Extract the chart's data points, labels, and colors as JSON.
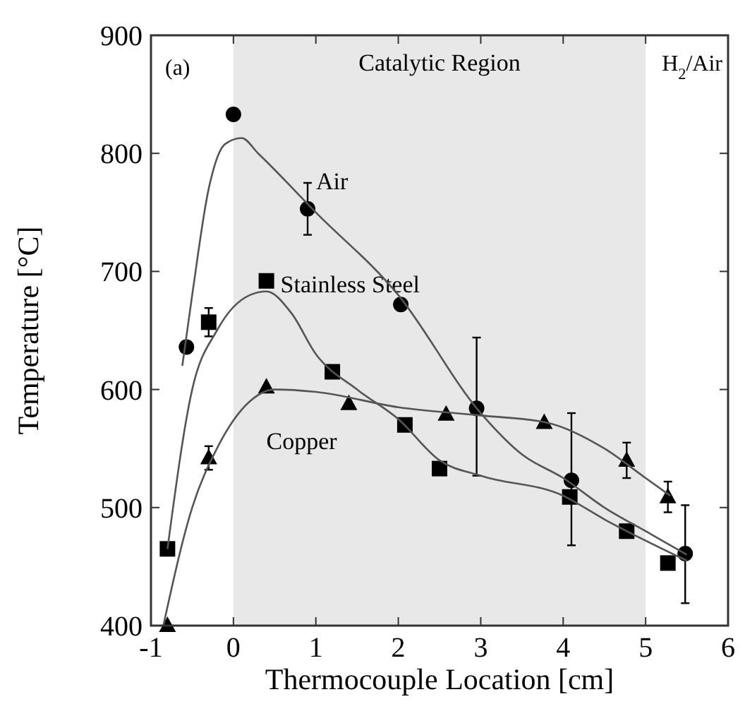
{
  "chart_data": {
    "type": "scatter",
    "xlabel": "Thermocouple Location [cm]",
    "ylabel": "Temperature [°C]",
    "xlim": [
      -1,
      6
    ],
    "ylim": [
      400,
      900
    ],
    "xticks": [
      -1,
      0,
      1,
      2,
      3,
      4,
      5,
      6
    ],
    "yticks": [
      400,
      500,
      600,
      700,
      800,
      900
    ],
    "grid": false,
    "legend": false,
    "bands": [
      {
        "axis": "x",
        "from": 0,
        "to": 5,
        "label": "Catalytic Region",
        "color": "#e8e8e8"
      }
    ],
    "annotations": [
      "(a)",
      "H$_{2}$/Air"
    ],
    "series": [
      {
        "name": "Air",
        "marker": "circle",
        "color": "#000000",
        "x": [
          -0.57,
          0,
          0.9,
          2.03,
          2.95,
          4.1,
          5.48
        ],
        "values": [
          636,
          833,
          753,
          672,
          584,
          523,
          461
        ],
        "errors": [
          null,
          null,
          22,
          null,
          [
            527,
            644
          ],
          [
            468,
            580
          ],
          [
            419,
            502
          ]
        ]
      },
      {
        "name": "Stainless Steel",
        "marker": "square",
        "color": "#000000",
        "x": [
          -0.8,
          -0.3,
          0.4,
          1.2,
          2.08,
          2.5,
          4.08,
          4.77,
          5.27
        ],
        "values": [
          465,
          657,
          692,
          615,
          570,
          533,
          509,
          480,
          453
        ],
        "errors": [
          null,
          12,
          null,
          null,
          null,
          null,
          null,
          null,
          null
        ]
      },
      {
        "name": "Copper",
        "marker": "triangle",
        "color": "#000000",
        "x": [
          -0.8,
          -0.3,
          0.4,
          1.4,
          2.58,
          3.77,
          4.77,
          5.27
        ],
        "values": [
          400,
          542,
          602,
          588,
          579,
          572,
          540,
          509
        ],
        "errors": [
          null,
          10,
          null,
          null,
          null,
          null,
          15,
          13
        ]
      },
      {
        "type": "line",
        "marker": "none",
        "color": "#555555",
        "x": [
          -0.62,
          -0.5,
          -0.3,
          -0.1,
          0.1,
          0.3,
          1,
          2,
          3,
          3.5,
          4,
          4.5,
          5,
          5.5
        ],
        "values": [
          620,
          680,
          770,
          808,
          813,
          800,
          750,
          680,
          580,
          545,
          525,
          500,
          480,
          460
        ]
      },
      {
        "type": "line",
        "marker": "none",
        "color": "#555555",
        "x": [
          -0.8,
          -0.5,
          -0.2,
          0.2,
          0.4,
          0.7,
          1,
          1.5,
          2,
          2.5,
          3,
          4,
          4.5,
          5.5
        ],
        "values": [
          465,
          600,
          650,
          680,
          683,
          665,
          630,
          600,
          575,
          540,
          527,
          510,
          490,
          455
        ]
      },
      {
        "type": "line",
        "marker": "none",
        "color": "#555555",
        "x": [
          -0.85,
          -0.5,
          -0.2,
          0.2,
          0.5,
          1,
          2,
          3,
          3.8,
          4.5,
          5,
          5.3
        ],
        "values": [
          400,
          500,
          550,
          590,
          600,
          598,
          585,
          578,
          572,
          550,
          525,
          510
        ]
      }
    ]
  }
}
